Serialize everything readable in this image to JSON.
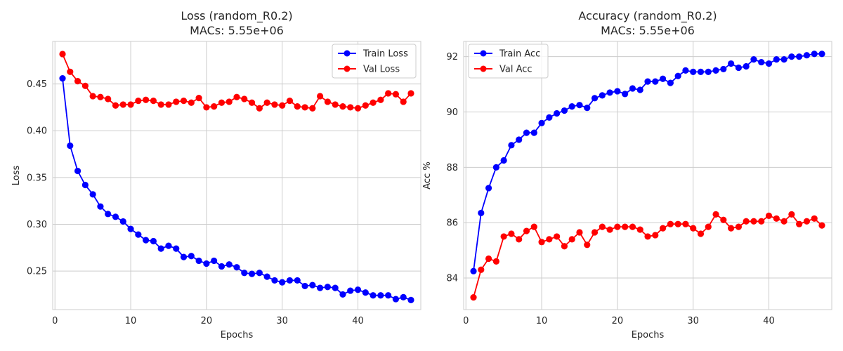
{
  "chart_data": [
    {
      "type": "line",
      "title_line1": "Loss (random_R0.2)",
      "title_line2": "MACs: 5.55e+06",
      "xlabel": "Epochs",
      "ylabel": "Loss",
      "xlim": [
        -0.3,
        48.3
      ],
      "ylim": [
        0.2088,
        0.4955
      ],
      "xticks": [
        0,
        10,
        20,
        30,
        40
      ],
      "yticks": [
        0.25,
        0.3,
        0.35,
        0.4,
        0.45
      ],
      "ytick_labels": [
        "0.25",
        "0.30",
        "0.35",
        "0.40",
        "0.45"
      ],
      "grid": true,
      "legend_position": "top-right",
      "x": [
        1,
        2,
        3,
        4,
        5,
        6,
        7,
        8,
        9,
        10,
        11,
        12,
        13,
        14,
        15,
        16,
        17,
        18,
        19,
        20,
        21,
        22,
        23,
        24,
        25,
        26,
        27,
        28,
        29,
        30,
        31,
        32,
        33,
        34,
        35,
        36,
        37,
        38,
        39,
        40,
        41,
        42,
        43,
        44,
        45,
        46,
        47
      ],
      "series": [
        {
          "name": "Train Loss",
          "color": "#0000ff",
          "values": [
            0.456,
            0.384,
            0.357,
            0.342,
            0.332,
            0.319,
            0.311,
            0.308,
            0.303,
            0.295,
            0.289,
            0.283,
            0.282,
            0.274,
            0.277,
            0.274,
            0.265,
            0.266,
            0.261,
            0.258,
            0.261,
            0.255,
            0.257,
            0.254,
            0.248,
            0.247,
            0.248,
            0.244,
            0.24,
            0.238,
            0.24,
            0.24,
            0.234,
            0.235,
            0.232,
            0.233,
            0.232,
            0.225,
            0.229,
            0.23,
            0.227,
            0.224,
            0.224,
            0.224,
            0.22,
            0.222,
            0.219
          ]
        },
        {
          "name": "Val Loss",
          "color": "#ff0000",
          "values": [
            0.482,
            0.463,
            0.453,
            0.448,
            0.437,
            0.436,
            0.434,
            0.427,
            0.428,
            0.428,
            0.432,
            0.433,
            0.432,
            0.428,
            0.428,
            0.431,
            0.432,
            0.43,
            0.435,
            0.425,
            0.426,
            0.43,
            0.431,
            0.436,
            0.434,
            0.43,
            0.424,
            0.43,
            0.428,
            0.427,
            0.432,
            0.426,
            0.425,
            0.424,
            0.437,
            0.431,
            0.428,
            0.426,
            0.425,
            0.424,
            0.427,
            0.43,
            0.433,
            0.44,
            0.439,
            0.431,
            0.44
          ]
        }
      ]
    },
    {
      "type": "line",
      "title_line1": "Accuracy (random_R0.2)",
      "title_line2": "MACs: 5.55e+06",
      "xlabel": "Epochs",
      "ylabel": "Acc %",
      "xlim": [
        -0.3,
        48.3
      ],
      "ylim": [
        82.86,
        92.55
      ],
      "xticks": [
        0,
        10,
        20,
        30,
        40
      ],
      "yticks": [
        84,
        86,
        88,
        90,
        92
      ],
      "ytick_labels": [
        "84",
        "86",
        "88",
        "90",
        "92"
      ],
      "grid": true,
      "legend_position": "top-left",
      "x": [
        1,
        2,
        3,
        4,
        5,
        6,
        7,
        8,
        9,
        10,
        11,
        12,
        13,
        14,
        15,
        16,
        17,
        18,
        19,
        20,
        21,
        22,
        23,
        24,
        25,
        26,
        27,
        28,
        29,
        30,
        31,
        32,
        33,
        34,
        35,
        36,
        37,
        38,
        39,
        40,
        41,
        42,
        43,
        44,
        45,
        46,
        47
      ],
      "series": [
        {
          "name": "Train Acc",
          "color": "#0000ff",
          "values": [
            84.25,
            86.35,
            87.25,
            88.0,
            88.25,
            88.8,
            89.0,
            89.25,
            89.25,
            89.6,
            89.8,
            89.95,
            90.05,
            90.2,
            90.25,
            90.15,
            90.5,
            90.6,
            90.7,
            90.75,
            90.65,
            90.85,
            90.8,
            91.1,
            91.1,
            91.2,
            91.05,
            91.3,
            91.5,
            91.45,
            91.45,
            91.45,
            91.5,
            91.55,
            91.75,
            91.6,
            91.65,
            91.9,
            91.8,
            91.75,
            91.9,
            91.9,
            92.0,
            92.0,
            92.05,
            92.1,
            92.1
          ]
        },
        {
          "name": "Val Acc",
          "color": "#ff0000",
          "values": [
            83.3,
            84.3,
            84.7,
            84.6,
            85.5,
            85.6,
            85.4,
            85.7,
            85.85,
            85.3,
            85.4,
            85.5,
            85.15,
            85.4,
            85.65,
            85.2,
            85.65,
            85.85,
            85.75,
            85.85,
            85.85,
            85.85,
            85.75,
            85.5,
            85.55,
            85.8,
            85.95,
            85.95,
            85.95,
            85.8,
            85.6,
            85.85,
            86.3,
            86.1,
            85.8,
            85.85,
            86.05,
            86.05,
            86.05,
            86.25,
            86.15,
            86.05,
            86.3,
            85.95,
            86.05,
            86.15,
            85.9
          ]
        }
      ]
    }
  ]
}
